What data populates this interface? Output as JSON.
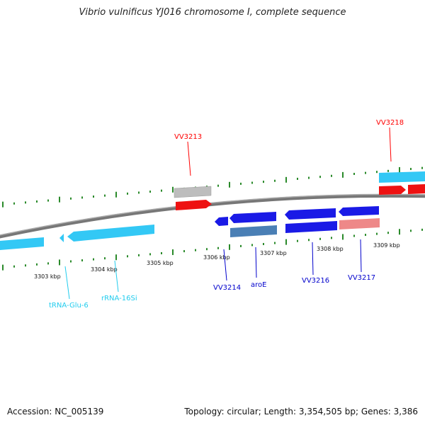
{
  "title": "Vibrio vulnificus YJ016 chromosome I, complete sequence",
  "footer": {
    "accession": "Accession: NC_005139",
    "stats": "Topology: circular; Length: 3,354,505 bp; Genes: 3,386"
  },
  "colors": {
    "backbone": "#808080",
    "tick": "#2a8a2a",
    "red_label": "#ff0000",
    "blue_label": "#0000cc",
    "cyan_label": "#22ccee",
    "feature_red": "#ee1111",
    "feature_blue": "#1a1ae6",
    "feature_cyan": "#33c8f5",
    "feature_grey": "#bdbdbd",
    "feature_steel": "#4a7fb5",
    "feature_pink": "#ee8888"
  },
  "ticks": {
    "labels": [
      "3303 kbp",
      "3304 kbp",
      "3305 kbp",
      "3306 kbp",
      "3307 kbp",
      "3308 kbp",
      "3309 kbp"
    ]
  },
  "features": [
    {
      "name": "VV3213",
      "color": "red_label",
      "kind": "label"
    },
    {
      "name": "VV3218",
      "color": "red_label",
      "kind": "label"
    },
    {
      "name": "VV3214",
      "color": "blue_label",
      "kind": "label"
    },
    {
      "name": "aroE",
      "color": "blue_label",
      "kind": "label"
    },
    {
      "name": "VV3216",
      "color": "blue_label",
      "kind": "label"
    },
    {
      "name": "VV3217",
      "color": "blue_label",
      "kind": "label"
    },
    {
      "name": "tRNA-Glu-6",
      "color": "cyan_label",
      "kind": "label"
    },
    {
      "name": "rRNA-16Si",
      "color": "cyan_label",
      "kind": "label"
    }
  ]
}
